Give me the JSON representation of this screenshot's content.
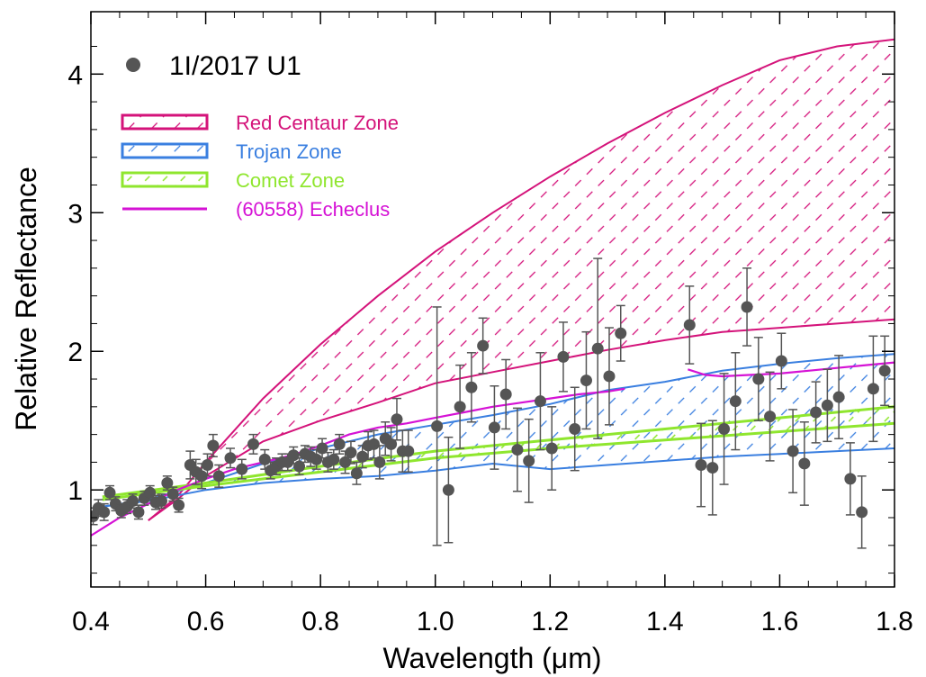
{
  "chart_data": {
    "type": "scatter",
    "xlabel": "Wavelength (μm)",
    "ylabel": "Relative Reflectance",
    "xlim": [
      0.4,
      1.8
    ],
    "ylim": [
      0.3,
      4.45
    ],
    "xticks": [
      0.4,
      0.6,
      0.8,
      1.0,
      1.2,
      1.4,
      1.6,
      1.8
    ],
    "xtick_labels": [
      "0.4",
      "0.6",
      "0.8",
      "1.0",
      "1.2",
      "1.4",
      "1.6",
      "1.8"
    ],
    "yticks": [
      1,
      2,
      3,
      4
    ],
    "ytick_labels": [
      "1",
      "2",
      "3",
      "4"
    ],
    "grid": false,
    "legend": "top-left",
    "colors": {
      "points": "#555555",
      "red_centaur": "#d4137a",
      "trojan": "#3a7fe0",
      "comet": "#8fe62e",
      "echeclus": "#d512d5"
    },
    "series": [
      {
        "name": "1I/2017 U1",
        "kind": "points_with_errorbars",
        "x": [
          0.404,
          0.413,
          0.423,
          0.433,
          0.443,
          0.453,
          0.463,
          0.473,
          0.483,
          0.493,
          0.503,
          0.513,
          0.523,
          0.533,
          0.543,
          0.553,
          0.573,
          0.583,
          0.593,
          0.603,
          0.613,
          0.623,
          0.643,
          0.663,
          0.683,
          0.703,
          0.713,
          0.723,
          0.733,
          0.743,
          0.753,
          0.763,
          0.773,
          0.783,
          0.793,
          0.803,
          0.813,
          0.823,
          0.833,
          0.843,
          0.853,
          0.863,
          0.873,
          0.883,
          0.893,
          0.903,
          0.913,
          0.923,
          0.933,
          0.943,
          0.953,
          1.003,
          1.023,
          1.043,
          1.063,
          1.083,
          1.103,
          1.123,
          1.143,
          1.163,
          1.183,
          1.203,
          1.223,
          1.243,
          1.263,
          1.283,
          1.303,
          1.323,
          1.443,
          1.463,
          1.483,
          1.503,
          1.523,
          1.543,
          1.563,
          1.583,
          1.603,
          1.623,
          1.643,
          1.663,
          1.683,
          1.703,
          1.723,
          1.743,
          1.763,
          1.783
        ],
        "y": [
          0.81,
          0.87,
          0.84,
          0.98,
          0.9,
          0.85,
          0.88,
          0.92,
          0.84,
          0.94,
          0.98,
          0.91,
          0.92,
          1.05,
          0.97,
          0.89,
          1.18,
          1.13,
          1.1,
          1.18,
          1.32,
          1.1,
          1.23,
          1.15,
          1.33,
          1.22,
          1.14,
          1.17,
          1.2,
          1.2,
          1.25,
          1.17,
          1.26,
          1.24,
          1.22,
          1.3,
          1.2,
          1.22,
          1.33,
          1.2,
          1.27,
          1.12,
          1.24,
          1.32,
          1.33,
          1.2,
          1.37,
          1.33,
          1.51,
          1.28,
          1.28,
          1.46,
          1.0,
          1.6,
          1.74,
          2.04,
          1.45,
          1.69,
          1.29,
          1.21,
          1.64,
          1.3,
          1.96,
          1.44,
          1.79,
          2.02,
          1.82,
          2.13,
          2.19,
          1.18,
          1.16,
          1.44,
          1.64,
          2.32,
          1.8,
          1.53,
          1.93,
          1.28,
          1.19,
          1.56,
          1.61,
          1.67,
          1.08,
          0.84,
          1.73,
          1.86
        ],
        "yerr": [
          0.06,
          0.06,
          0.06,
          0.05,
          0.05,
          0.05,
          0.05,
          0.05,
          0.05,
          0.05,
          0.05,
          0.05,
          0.05,
          0.05,
          0.05,
          0.05,
          0.1,
          0.09,
          0.09,
          0.08,
          0.08,
          0.08,
          0.07,
          0.07,
          0.07,
          0.07,
          0.06,
          0.06,
          0.06,
          0.06,
          0.06,
          0.06,
          0.06,
          0.07,
          0.07,
          0.07,
          0.07,
          0.07,
          0.07,
          0.08,
          0.08,
          0.08,
          0.08,
          0.1,
          0.1,
          0.12,
          0.12,
          0.12,
          0.15,
          0.15,
          0.15,
          0.86,
          0.38,
          0.3,
          0.25,
          0.2,
          0.3,
          0.25,
          0.3,
          0.3,
          0.35,
          0.3,
          0.25,
          0.3,
          0.35,
          0.65,
          0.35,
          0.2,
          0.28,
          0.3,
          0.34,
          0.4,
          0.35,
          0.28,
          0.3,
          0.32,
          0.2,
          0.3,
          0.3,
          0.22,
          0.26,
          0.3,
          0.26,
          0.26,
          0.38,
          0.25
        ]
      },
      {
        "name": "Red Centaur Zone",
        "kind": "band",
        "upper": {
          "x": [
            0.5,
            0.55,
            0.6,
            0.7,
            0.8,
            0.9,
            1.0,
            1.1,
            1.2,
            1.3,
            1.4,
            1.5,
            1.6,
            1.7,
            1.8
          ],
          "y": [
            0.78,
            0.95,
            1.2,
            1.66,
            2.05,
            2.4,
            2.72,
            3.0,
            3.26,
            3.5,
            3.72,
            3.92,
            4.1,
            4.2,
            4.25
          ]
        },
        "lower": {
          "x": [
            0.5,
            0.55,
            0.6,
            0.7,
            0.8,
            0.9,
            1.0,
            1.1,
            1.2,
            1.3,
            1.4,
            1.5,
            1.6,
            1.7,
            1.8
          ],
          "y": [
            0.78,
            0.93,
            1.1,
            1.35,
            1.5,
            1.63,
            1.77,
            1.85,
            1.93,
            2.01,
            2.08,
            2.14,
            2.17,
            2.2,
            2.23
          ]
        }
      },
      {
        "name": "Trojan Zone",
        "kind": "band",
        "upper": {
          "x": [
            0.42,
            0.5,
            0.6,
            0.7,
            0.8,
            0.9,
            1.0,
            1.1,
            1.2,
            1.3,
            1.4,
            1.5,
            1.6,
            1.7,
            1.8
          ],
          "y": [
            0.88,
            0.93,
            1.05,
            1.19,
            1.3,
            1.4,
            1.47,
            1.54,
            1.62,
            1.72,
            1.78,
            1.86,
            1.91,
            1.95,
            1.98
          ]
        },
        "lower": {
          "x": [
            0.42,
            0.5,
            0.6,
            0.7,
            0.8,
            0.9,
            1.0,
            1.1,
            1.2,
            1.3,
            1.4,
            1.5,
            1.6,
            1.7,
            1.8
          ],
          "y": [
            0.88,
            0.92,
            1.0,
            1.05,
            1.08,
            1.1,
            1.14,
            1.19,
            1.15,
            1.18,
            1.21,
            1.24,
            1.26,
            1.28,
            1.3
          ]
        }
      },
      {
        "name": "Comet Zone",
        "kind": "band",
        "upper": {
          "x": [
            0.42,
            0.6,
            0.8,
            1.0,
            1.2,
            1.4,
            1.6,
            1.8
          ],
          "y": [
            0.95,
            1.05,
            1.17,
            1.28,
            1.36,
            1.44,
            1.52,
            1.6
          ]
        },
        "lower": {
          "x": [
            0.42,
            0.6,
            0.8,
            1.0,
            1.2,
            1.4,
            1.6,
            1.8
          ],
          "y": [
            0.93,
            1.03,
            1.13,
            1.23,
            1.3,
            1.36,
            1.42,
            1.48
          ]
        }
      },
      {
        "name": "(60558) Echeclus",
        "kind": "line",
        "segments": [
          {
            "x": [
              0.4,
              0.45,
              0.5,
              0.55,
              0.6,
              0.65,
              0.7,
              0.75,
              0.8,
              0.85,
              0.9,
              0.95,
              1.0,
              1.05,
              1.1,
              1.15,
              1.2,
              1.25,
              1.3,
              1.33
            ],
            "y": [
              0.67,
              0.8,
              0.9,
              1.0,
              1.08,
              1.15,
              1.2,
              1.25,
              1.32,
              1.4,
              1.45,
              1.48,
              1.52,
              1.56,
              1.6,
              1.63,
              1.66,
              1.69,
              1.71,
              1.73
            ]
          },
          {
            "x": [
              1.44,
              1.47,
              1.5,
              1.55,
              1.6,
              1.65,
              1.7,
              1.75,
              1.8
            ],
            "y": [
              1.87,
              1.83,
              1.82,
              1.83,
              1.84,
              1.86,
              1.88,
              1.9,
              1.92
            ]
          }
        ]
      }
    ]
  },
  "legend": {
    "items": [
      {
        "label": "1I/2017 U1",
        "color": "#555555",
        "kind": "marker"
      },
      {
        "label": "Red Centaur Zone",
        "color": "#d4137a",
        "kind": "hatched-box"
      },
      {
        "label": "Trojan Zone",
        "color": "#3a7fe0",
        "kind": "hatched-box"
      },
      {
        "label": "Comet Zone",
        "color": "#8fe62e",
        "kind": "hatched-box"
      },
      {
        "label": "(60558) Echeclus",
        "color": "#d512d5",
        "kind": "line"
      }
    ]
  }
}
